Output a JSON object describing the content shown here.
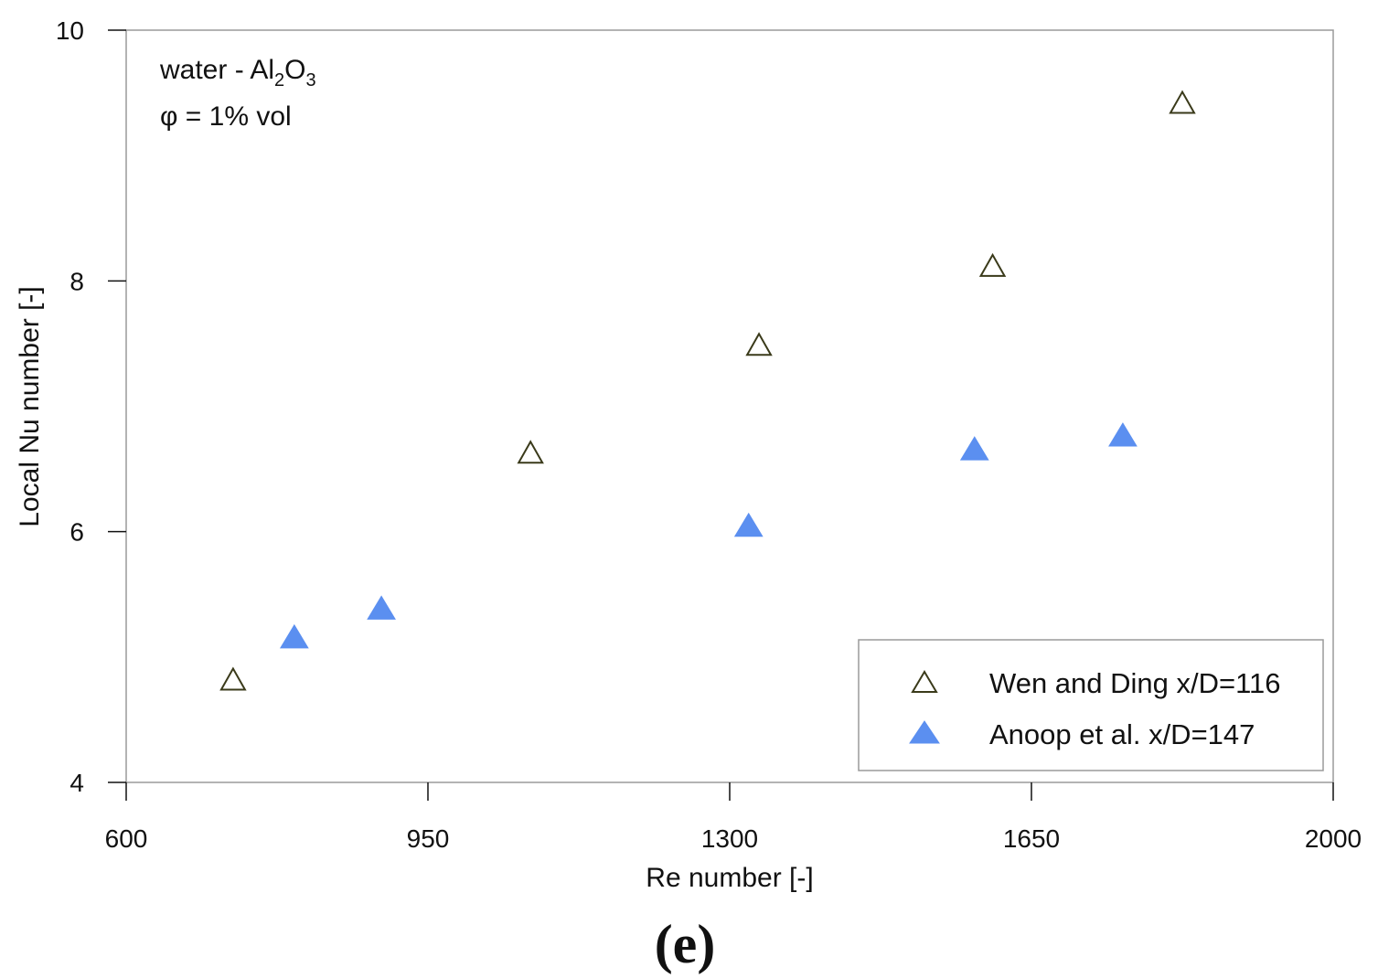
{
  "chart_data": {
    "type": "scatter",
    "xlabel": "Re number [-]",
    "ylabel": "Local Nu number [-]",
    "xlim": [
      600,
      2000
    ],
    "ylim": [
      4,
      10
    ],
    "xticks": [
      600,
      950,
      1300,
      1650,
      2000
    ],
    "yticks": [
      4,
      6,
      8,
      10
    ],
    "grid": false,
    "legend_position": "bottom-right",
    "annotations": {
      "line1_prefix": "water - Al",
      "line1_sub1": "2",
      "line1_mid": "O",
      "line1_sub2": "3",
      "line2": "φ = 1% vol"
    },
    "panel_label": "(e)",
    "series": [
      {
        "name": "Wen and Ding x/D=116",
        "marker": "triangle-open",
        "color": "#3a3a1a",
        "x": [
          724,
          1069,
          1334,
          1605,
          1825
        ],
        "y": [
          4.82,
          6.63,
          7.49,
          8.12,
          9.42
        ]
      },
      {
        "name": "Anoop et al. x/D=147",
        "marker": "triangle-filled",
        "color": "#5b8ff0",
        "x": [
          795,
          896,
          1322,
          1584,
          1756
        ],
        "y": [
          5.16,
          5.39,
          6.05,
          6.66,
          6.77
        ]
      }
    ]
  }
}
